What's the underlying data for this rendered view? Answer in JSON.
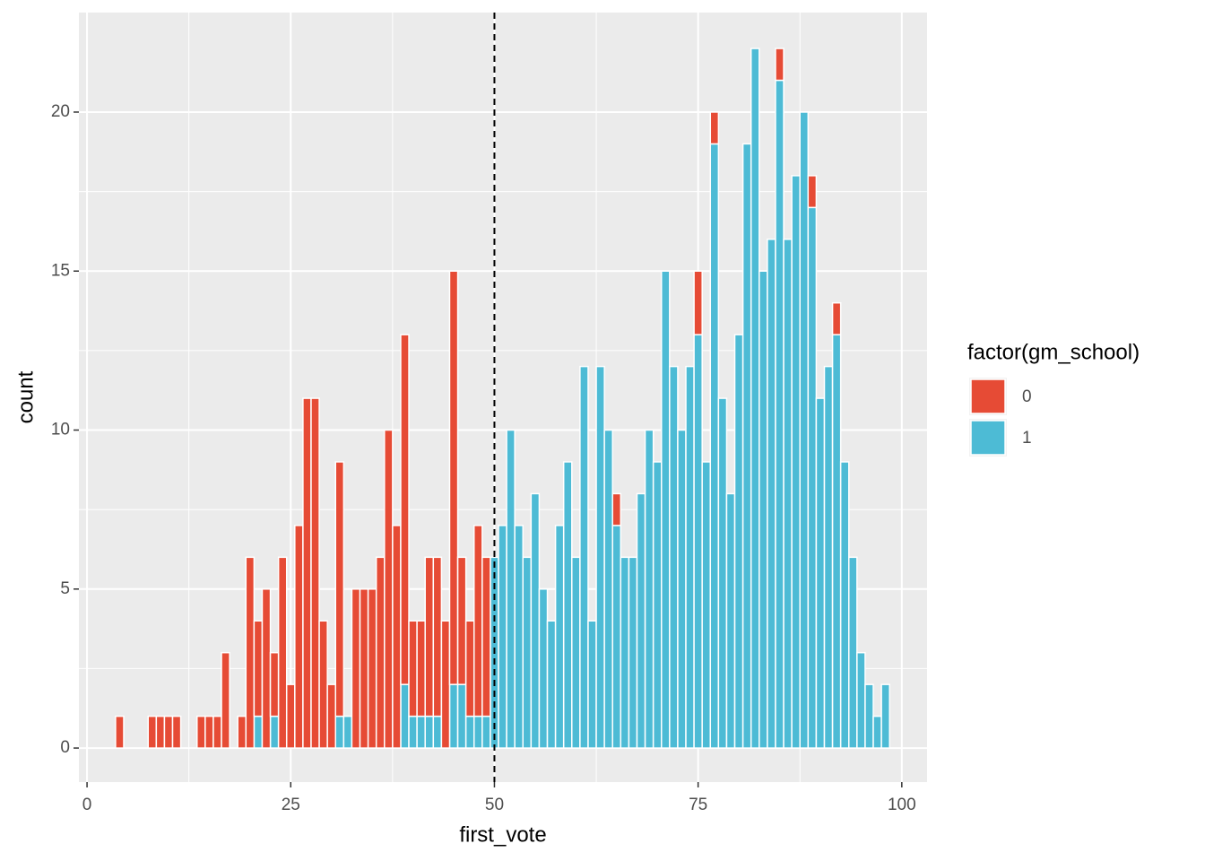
{
  "chart_data": {
    "type": "histogram",
    "x_label": "first_vote",
    "y_label": "count",
    "legend_title": "factor(gm_school)",
    "bins": [
      3.5,
      4.5,
      5.5,
      6.5,
      7.5,
      8.5,
      9.5,
      10.5,
      11.5,
      12.5,
      13.5,
      14.5,
      15.5,
      16.5,
      17.5,
      18.5,
      19.5,
      20.5,
      21.5,
      22.5,
      23.5,
      24.5,
      25.5,
      26.5,
      27.5,
      28.5,
      29.5,
      30.5,
      31.5,
      32.5,
      33.5,
      34.5,
      35.5,
      36.5,
      37.5,
      38.5,
      39.5,
      40.5,
      41.5,
      42.5,
      43.5,
      44.5,
      45.5,
      46.5,
      47.5,
      48.5,
      49.5,
      50.5,
      51.5,
      52.5,
      53.5,
      54.5,
      55.5,
      56.5,
      57.5,
      58.5,
      59.5,
      60.5,
      61.5,
      62.5,
      63.5,
      64.5,
      65.5,
      66.5,
      67.5,
      68.5,
      69.5,
      70.5,
      71.5,
      72.5,
      73.5,
      74.5,
      75.5,
      76.5,
      77.5,
      78.5,
      79.5,
      80.5,
      81.5,
      82.5,
      83.5,
      84.5,
      85.5,
      86.5,
      87.5,
      88.5,
      89.5,
      90.5,
      91.5,
      92.5,
      93.5,
      94.5,
      95.5,
      96.5,
      97.5,
      98.5
    ],
    "series": [
      {
        "name": "0",
        "color": "#e64b35",
        "values": [
          1,
          0,
          0,
          0,
          1,
          1,
          1,
          1,
          0,
          0,
          1,
          1,
          1,
          3,
          0,
          1,
          6,
          3,
          5,
          2,
          6,
          2,
          7,
          11,
          11,
          4,
          2,
          8,
          0,
          5,
          5,
          5,
          6,
          10,
          7,
          11,
          3,
          3,
          5,
          5,
          4,
          13,
          4,
          3,
          6,
          5,
          0,
          0,
          0,
          0,
          0,
          0,
          0,
          0,
          0,
          0,
          0,
          0,
          0,
          0,
          0,
          1,
          0,
          0,
          0,
          0,
          0,
          0,
          0,
          0,
          0,
          2,
          0,
          1,
          0,
          0,
          0,
          0,
          0,
          0,
          0,
          1,
          0,
          0,
          0,
          1,
          0,
          0,
          1,
          0,
          0,
          0,
          0,
          0,
          0
        ]
      },
      {
        "name": "1",
        "color": "#4dbbd5",
        "values": [
          0,
          0,
          0,
          0,
          0,
          0,
          0,
          0,
          0,
          0,
          0,
          0,
          0,
          0,
          0,
          0,
          0,
          1,
          0,
          1,
          0,
          0,
          0,
          0,
          0,
          0,
          0,
          1,
          1,
          0,
          0,
          0,
          0,
          0,
          0,
          2,
          1,
          1,
          1,
          1,
          0,
          2,
          2,
          1,
          1,
          1,
          6,
          7,
          10,
          7,
          6,
          8,
          5,
          4,
          7,
          9,
          6,
          12,
          4,
          12,
          10,
          7,
          6,
          6,
          8,
          10,
          9,
          15,
          12,
          10,
          12,
          13,
          9,
          19,
          11,
          8,
          13,
          19,
          22,
          15,
          16,
          21,
          16,
          18,
          20,
          17,
          11,
          12,
          13,
          9,
          6,
          3,
          2,
          1,
          2
        ]
      }
    ],
    "stacked": true,
    "vline": 50,
    "xlim": [
      -1,
      103.1
    ],
    "ylim": [
      -1.07,
      23.13
    ],
    "xticks": [
      0,
      25,
      50,
      75,
      100
    ],
    "yticks": [
      0,
      5,
      10,
      15,
      20
    ],
    "grid": true
  }
}
